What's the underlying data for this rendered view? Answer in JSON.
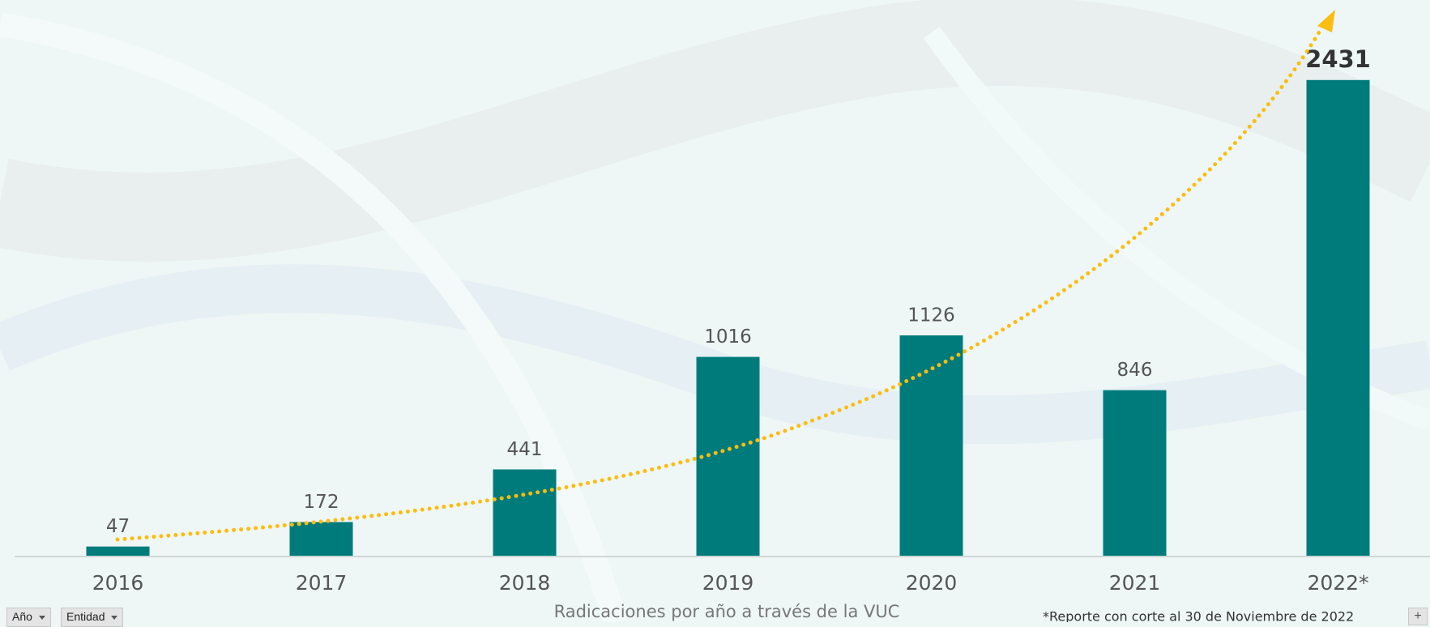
{
  "chart_data": {
    "type": "bar",
    "categories": [
      "2016",
      "2017",
      "2018",
      "2019",
      "2020",
      "2021",
      "2022*"
    ],
    "values": [
      47,
      172,
      441,
      1016,
      1126,
      846,
      2431
    ],
    "color": "#007b7b",
    "ylim": [
      0,
      2840
    ],
    "x_label": "Radicaciones por año a través de la VUC",
    "footnote": "*Reporte con corte al 30 de Noviembre de 2022"
  },
  "filters": [
    "Año",
    "Entidad"
  ],
  "add_button": "+"
}
